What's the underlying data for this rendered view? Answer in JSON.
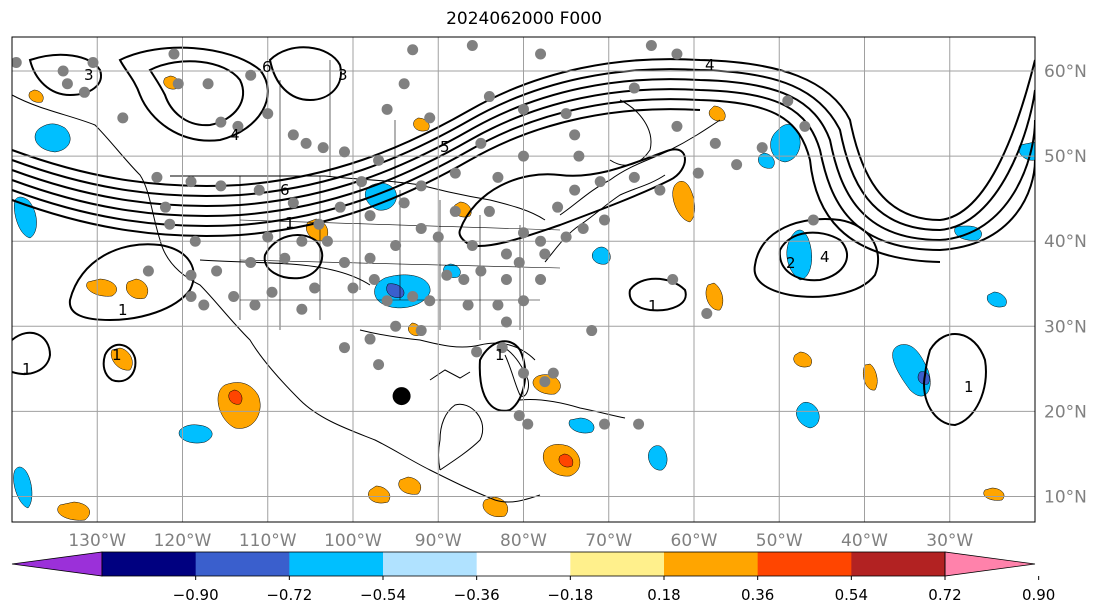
{
  "title": "2024062000 F000",
  "map": {
    "projection": "plate-carree",
    "extent": {
      "lon": [
        -140,
        -20
      ],
      "lat": [
        7,
        64
      ]
    },
    "lon_ticks": [
      {
        "lon": -130,
        "label": "130°W"
      },
      {
        "lon": -120,
        "label": "120°W"
      },
      {
        "lon": -110,
        "label": "110°W"
      },
      {
        "lon": -100,
        "label": "100°W"
      },
      {
        "lon": -90,
        "label": "90°W"
      },
      {
        "lon": -80,
        "label": "80°W"
      },
      {
        "lon": -70,
        "label": "70°W"
      },
      {
        "lon": -60,
        "label": "60°W"
      },
      {
        "lon": -50,
        "label": "50°W"
      },
      {
        "lon": -40,
        "label": "40°W"
      },
      {
        "lon": -30,
        "label": "30°W"
      }
    ],
    "lat_ticks": [
      {
        "lat": 60,
        "label": "60°N"
      },
      {
        "lat": 50,
        "label": "50°N"
      },
      {
        "lat": 40,
        "label": "40°N"
      },
      {
        "lat": 30,
        "label": "30°N"
      },
      {
        "lat": 20,
        "label": "20°N"
      },
      {
        "lat": 10,
        "label": "10°N"
      }
    ],
    "grid": true,
    "contour_labels": [
      "1",
      "2",
      "3",
      "4",
      "5",
      "6"
    ],
    "marked_point": {
      "lon": -94.3,
      "lat": 21.8,
      "color": "#000000"
    },
    "station_color": "#808080",
    "stations": [
      [
        -131.5,
        57.5
      ],
      [
        -130.5,
        61
      ],
      [
        -133.5,
        58.5
      ],
      [
        -127,
        54.5
      ],
      [
        -121,
        62
      ],
      [
        -117,
        58.5
      ],
      [
        -113.5,
        53.5
      ],
      [
        -110,
        55
      ],
      [
        -107,
        52.5
      ],
      [
        -105.5,
        51.5
      ],
      [
        -115.5,
        54
      ],
      [
        -120.5,
        58.5
      ],
      [
        -112,
        59.5
      ],
      [
        -93,
        62.5
      ],
      [
        -86,
        63
      ],
      [
        -94,
        58.5
      ],
      [
        -96,
        55.5
      ],
      [
        -101,
        50.5
      ],
      [
        -97,
        49.5
      ],
      [
        -91,
        54.5
      ],
      [
        -84,
        57
      ],
      [
        -80,
        55.5
      ],
      [
        -78,
        62
      ],
      [
        -65,
        63
      ],
      [
        -67,
        58
      ],
      [
        -74,
        52.5
      ],
      [
        -80,
        50
      ],
      [
        -85,
        51.5
      ],
      [
        -62,
        53.5
      ],
      [
        -57.5,
        51.5
      ],
      [
        -55,
        49
      ],
      [
        -59.5,
        48
      ],
      [
        -64,
        46
      ],
      [
        -67,
        47.5
      ],
      [
        -71,
        47
      ],
      [
        -74,
        46
      ],
      [
        -76,
        44
      ],
      [
        -83,
        47.5
      ],
      [
        -88,
        48
      ],
      [
        -92,
        46.5
      ],
      [
        -94,
        44.5
      ],
      [
        -98,
        43
      ],
      [
        -101.5,
        44
      ],
      [
        -104,
        42
      ],
      [
        -107,
        44.5
      ],
      [
        -111,
        46
      ],
      [
        -115.5,
        46.5
      ],
      [
        -119,
        47
      ],
      [
        -123,
        47.5
      ],
      [
        -122,
        44
      ],
      [
        -121.5,
        42
      ],
      [
        -118.5,
        40
      ],
      [
        -119,
        36
      ],
      [
        -116,
        36.5
      ],
      [
        -112,
        37.5
      ],
      [
        -110,
        40.5
      ],
      [
        -106,
        40
      ],
      [
        -103,
        40
      ],
      [
        -101,
        37.5
      ],
      [
        -98,
        38
      ],
      [
        -95,
        39.5
      ],
      [
        -92,
        41.5
      ],
      [
        -90,
        40.5
      ],
      [
        -88,
        43.5
      ],
      [
        -84,
        43.5
      ],
      [
        -80,
        41
      ],
      [
        -78,
        40
      ],
      [
        -75,
        40.5
      ],
      [
        -73,
        41.5
      ],
      [
        -70.5,
        42.5
      ],
      [
        -86,
        39.5
      ],
      [
        -85,
        36.5
      ],
      [
        -87,
        35.5
      ],
      [
        -89,
        36
      ],
      [
        -91,
        33
      ],
      [
        -93,
        33.5
      ],
      [
        -96,
        33
      ],
      [
        -97.5,
        35.5
      ],
      [
        -100,
        34.5
      ],
      [
        -104.5,
        34.5
      ],
      [
        -106,
        32
      ],
      [
        -109.5,
        34
      ],
      [
        -111.5,
        32.5
      ],
      [
        -114,
        33.5
      ],
      [
        -117.5,
        32.5
      ],
      [
        -119,
        33.5
      ],
      [
        -98,
        28.5
      ],
      [
        -101,
        27.5
      ],
      [
        -97,
        25.5
      ],
      [
        -92,
        29.5
      ],
      [
        -95,
        30
      ],
      [
        -86.5,
        32.5
      ],
      [
        -83,
        32.5
      ],
      [
        -82,
        35.5
      ],
      [
        -80,
        33
      ],
      [
        -78,
        35.5
      ],
      [
        -80.5,
        37.5
      ],
      [
        -77.5,
        38.5
      ],
      [
        -82,
        38.5
      ],
      [
        -82,
        30.5
      ],
      [
        -82.5,
        27.5
      ],
      [
        -85.5,
        27
      ],
      [
        -80,
        24.5
      ],
      [
        -77.5,
        23.5
      ],
      [
        -76.5,
        24.5
      ],
      [
        -80.5,
        19.5
      ],
      [
        -79.5,
        18.5
      ],
      [
        -70.5,
        18.5
      ],
      [
        -66.5,
        18.5
      ],
      [
        -62,
        62
      ],
      [
        -49,
        56.5
      ],
      [
        -47,
        53.5
      ],
      [
        -52,
        51
      ],
      [
        -46,
        42.5
      ],
      [
        -75,
        55
      ],
      [
        -73.5,
        50
      ],
      [
        -62.5,
        35.5
      ],
      [
        -58.5,
        31.5
      ],
      [
        -72,
        29.5
      ],
      [
        -103.5,
        51
      ],
      [
        -99,
        47
      ],
      [
        -108,
        38
      ],
      [
        -124,
        36.5
      ],
      [
        -134,
        60
      ],
      [
        -139.5,
        61
      ]
    ]
  },
  "colorbar": {
    "ticks": [
      "−0.90",
      "−0.72",
      "−0.54",
      "−0.36",
      "−0.18",
      "0.18",
      "0.36",
      "0.54",
      "0.72",
      "0.90"
    ],
    "colors": [
      "#9b30d9",
      "#000080",
      "#3a5fcd",
      "#00bfff",
      "#b0e2ff",
      "#ffffff",
      "#fff08c",
      "#ffa500",
      "#ff4500",
      "#b22222",
      "#ff82ab"
    ],
    "extend": "both"
  }
}
